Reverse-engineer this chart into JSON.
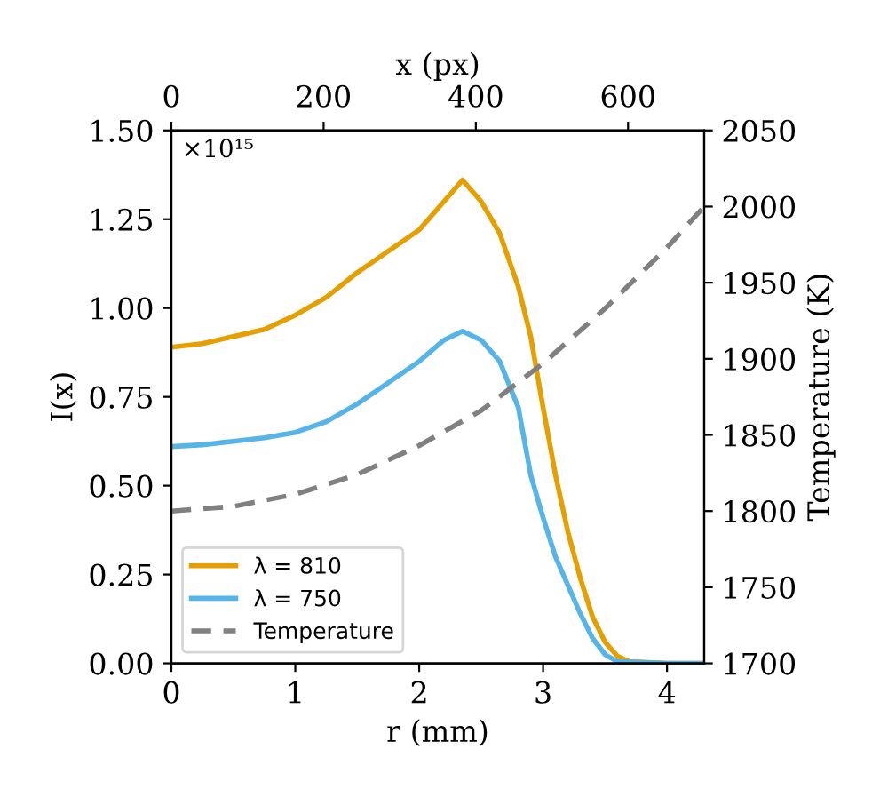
{
  "chart_data": {
    "type": "line",
    "xlabel": "r (mm)",
    "ylabel": "I(x)",
    "y2label": "Temperature (K)",
    "x2label": "x (px)",
    "annotations": [
      "×10¹⁵"
    ],
    "xlim": [
      0,
      4.3
    ],
    "xticks": [
      0,
      1,
      2,
      3,
      4
    ],
    "x2lim": [
      0,
      700
    ],
    "x2ticks": [
      0,
      200,
      400,
      600
    ],
    "ylim": [
      0,
      1.5
    ],
    "yticks": [
      {
        "value": 0,
        "label": "0.00"
      },
      {
        "value": 0.25,
        "label": "0.25"
      },
      {
        "value": 0.5,
        "label": "0.50"
      },
      {
        "value": 0.75,
        "label": "0.75"
      },
      {
        "value": 1,
        "label": "1.00"
      },
      {
        "value": 1.25,
        "label": "1.25"
      },
      {
        "value": 1.5,
        "label": "1.50"
      }
    ],
    "y2lim": [
      1700,
      2050
    ],
    "y2ticks": [
      1700,
      1750,
      1800,
      1850,
      1900,
      1950,
      2000,
      2050
    ],
    "legend": "bottom left",
    "grid": false,
    "series": [
      {
        "name": "λ = 810",
        "color": "#e69f00",
        "line_style": "solid",
        "x": [
          0,
          0.25,
          0.5,
          0.75,
          1,
          1.25,
          1.5,
          1.75,
          2,
          2.2,
          2.35,
          2.5,
          2.65,
          2.8,
          2.9,
          3.0,
          3.1,
          3.2,
          3.3,
          3.4,
          3.5,
          3.6,
          3.7,
          4.0,
          4.3
        ],
        "values": [
          0.89,
          0.9,
          0.92,
          0.94,
          0.98,
          1.03,
          1.1,
          1.16,
          1.22,
          1.3,
          1.36,
          1.3,
          1.21,
          1.06,
          0.92,
          0.72,
          0.53,
          0.37,
          0.24,
          0.13,
          0.06,
          0.02,
          0.005,
          0,
          0
        ]
      },
      {
        "name": "λ = 750",
        "color": "#56b4e9",
        "line_style": "solid",
        "x": [
          0,
          0.25,
          0.5,
          0.75,
          1,
          1.25,
          1.5,
          1.75,
          2,
          2.2,
          2.35,
          2.5,
          2.65,
          2.8,
          2.9,
          3.0,
          3.1,
          3.2,
          3.3,
          3.4,
          3.5,
          3.6,
          4.0,
          4.3
        ],
        "values": [
          0.61,
          0.615,
          0.625,
          0.635,
          0.65,
          0.68,
          0.73,
          0.79,
          0.85,
          0.91,
          0.935,
          0.91,
          0.85,
          0.72,
          0.53,
          0.41,
          0.3,
          0.22,
          0.14,
          0.07,
          0.025,
          0.005,
          0,
          0
        ]
      },
      {
        "name": "Temperature",
        "color": "#808080",
        "line_style": "dashed",
        "axis": "y2",
        "x": [
          0,
          0.5,
          1,
          1.5,
          2,
          2.5,
          3,
          3.5,
          4,
          4.3
        ],
        "values": [
          1800,
          1803,
          1811,
          1824,
          1843,
          1866,
          1897,
          1933,
          1973,
          2000
        ]
      }
    ]
  }
}
